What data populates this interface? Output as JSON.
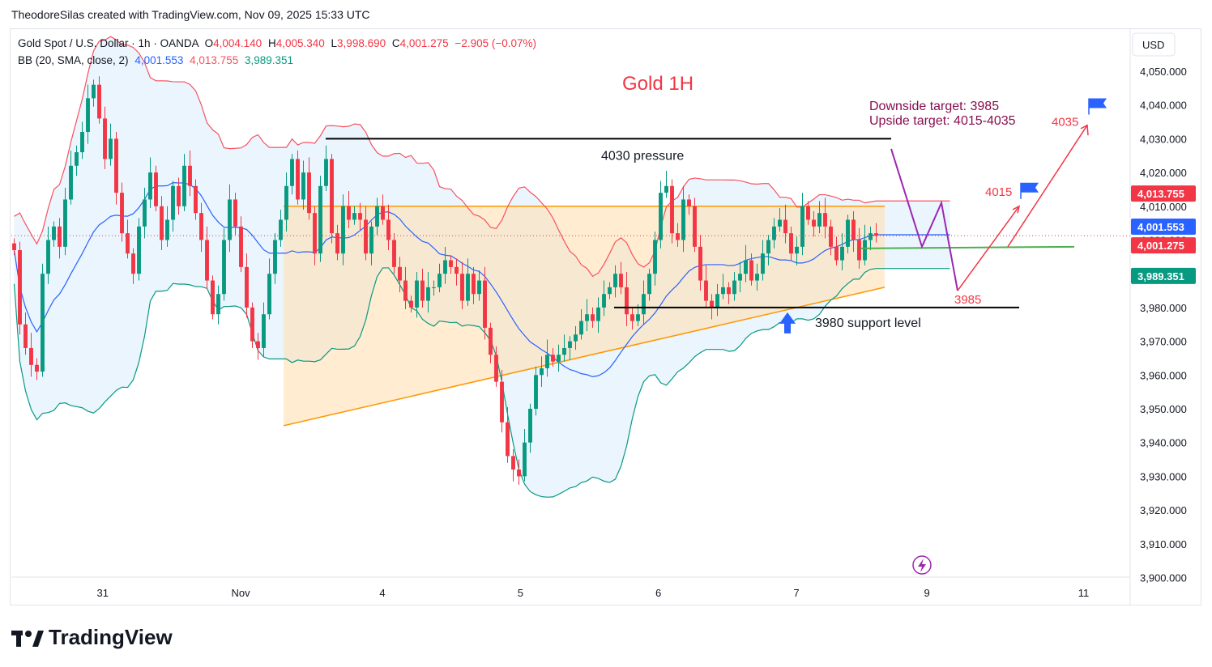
{
  "attribution": "TheodoreSilas created with TradingView.com, Nov 09, 2025 15:33 UTC",
  "brand": "TradingView",
  "legend": {
    "symbol": "Gold Spot / U.S. Dollar · 1h · OANDA",
    "o_label": "O",
    "o_value": "4,004.140",
    "h_label": "H",
    "h_value": "4,005.340",
    "l_label": "L",
    "l_value": "3,998.690",
    "c_label": "C",
    "c_value": "4,001.275",
    "change": "−2.905 (−0.07%)",
    "bb_label": "BB (20, SMA, close, 2)",
    "bb_basis": "4,001.553",
    "bb_upper": "4,013.755",
    "bb_lower": "3,989.351"
  },
  "colors": {
    "up": "#089981",
    "down": "#f23645",
    "bb_basis": "#2962ff",
    "bb_upper": "#f7525f",
    "bb_lower": "#089981",
    "bb_fill": "#e3f2fd",
    "triangle_fill": "#ffe0b2",
    "triangle_line": "#ff9800",
    "pressure_line": "#000000",
    "support_line": "#000000",
    "green_line": "#4caf50",
    "purple_path": "#9c27b0",
    "red_path": "#f23645",
    "title": "#f23645",
    "targets_text": "#880e4f"
  },
  "chart_data": {
    "type": "candlestick",
    "title": "Gold 1H",
    "currency_label": "USD",
    "y_range": [
      3900,
      4054
    ],
    "y_ticks": [
      "4,050.000",
      "4,040.000",
      "4,030.000",
      "4,020.000",
      "4,010.000",
      "4,000.000",
      "3,990.000",
      "3,980.000",
      "3,970.000",
      "3,960.000",
      "3,950.000",
      "3,940.000",
      "3,930.000",
      "3,920.000",
      "3,910.000",
      "3,900.000"
    ],
    "y_tick_values": [
      4050,
      4040,
      4030,
      4020,
      4010,
      4000,
      3990,
      3980,
      3970,
      3960,
      3950,
      3940,
      3930,
      3920,
      3910,
      3900
    ],
    "x_ticks": [
      {
        "label": "31",
        "bar": 24
      },
      {
        "label": "Nov",
        "bar": 61
      },
      {
        "label": "4",
        "bar": 99
      },
      {
        "label": "5",
        "bar": 136
      },
      {
        "label": "6",
        "bar": 173
      },
      {
        "label": "7",
        "bar": 210
      },
      {
        "label": "9",
        "bar": 245
      },
      {
        "label": "11",
        "bar": 287
      }
    ],
    "bars_total": 300,
    "price_labels": [
      {
        "text": "4,013.755",
        "value": 4013.755,
        "color": "#f23645"
      },
      {
        "text": "4,001.553",
        "value": 4001.553,
        "color": "#2962ff"
      },
      {
        "text": "4,001.275",
        "value": 4001.275,
        "color": "#f23645"
      },
      {
        "text": "3,989.351",
        "value": 3989.351,
        "color": "#089981"
      }
    ],
    "current_price": 4001.275,
    "closes": [
      3997,
      3975,
      3968,
      3963,
      3961,
      3990,
      4000,
      4004,
      3998,
      4012,
      4022,
      4026,
      4032,
      4042,
      4046,
      4036,
      4024,
      4030,
      4014,
      4002,
      3996,
      3990,
      4004,
      4012,
      4020,
      4010,
      4000,
      4006,
      4016,
      4010,
      4022,
      4016,
      4008,
      4000,
      3988,
      3978,
      3984,
      4000,
      4012,
      4004,
      3992,
      3980,
      3970,
      3968,
      3978,
      3990,
      4000,
      4006,
      4016,
      4024,
      4012,
      4020,
      4008,
      3996,
      4016,
      4024,
      4002,
      3996,
      4010,
      4006,
      4008,
      4006,
      3996,
      4004,
      4010,
      4006,
      4000,
      3992,
      3988,
      3982,
      3980,
      3988,
      3982,
      3986,
      3986,
      3990,
      3994,
      3992,
      3990,
      3982,
      3990,
      3984,
      3988,
      3974,
      3966,
      3958,
      3946,
      3936,
      3932,
      3930,
      3940,
      3950,
      3960,
      3962,
      3966,
      3964,
      3966,
      3968,
      3970,
      3972,
      3976,
      3978,
      3976,
      3980,
      3984,
      3986,
      3990,
      3986,
      3978,
      3976,
      3978,
      3984,
      3990,
      4000,
      4014,
      4016,
      4002,
      4000,
      4012,
      4010,
      3998,
      3988,
      3982,
      3980,
      3984,
      3986,
      3984,
      3988,
      3990,
      3994,
      3988,
      3990,
      3996,
      4000,
      4004,
      4006,
      4002,
      3996,
      3998,
      4010,
      4006,
      4004,
      4008,
      4004,
      3998,
      3994,
      3998,
      4006,
      4000,
      3994,
      4000,
      4002,
      4001.275
    ],
    "annotations": {
      "pressure_label": "4030 pressure",
      "support_label": "3980 support level",
      "targets_down": "Downside target: 3985",
      "targets_up": "Upside target: 4015-4035",
      "label_3985": "3985",
      "label_4015": "4015",
      "label_4035": "4035"
    }
  }
}
